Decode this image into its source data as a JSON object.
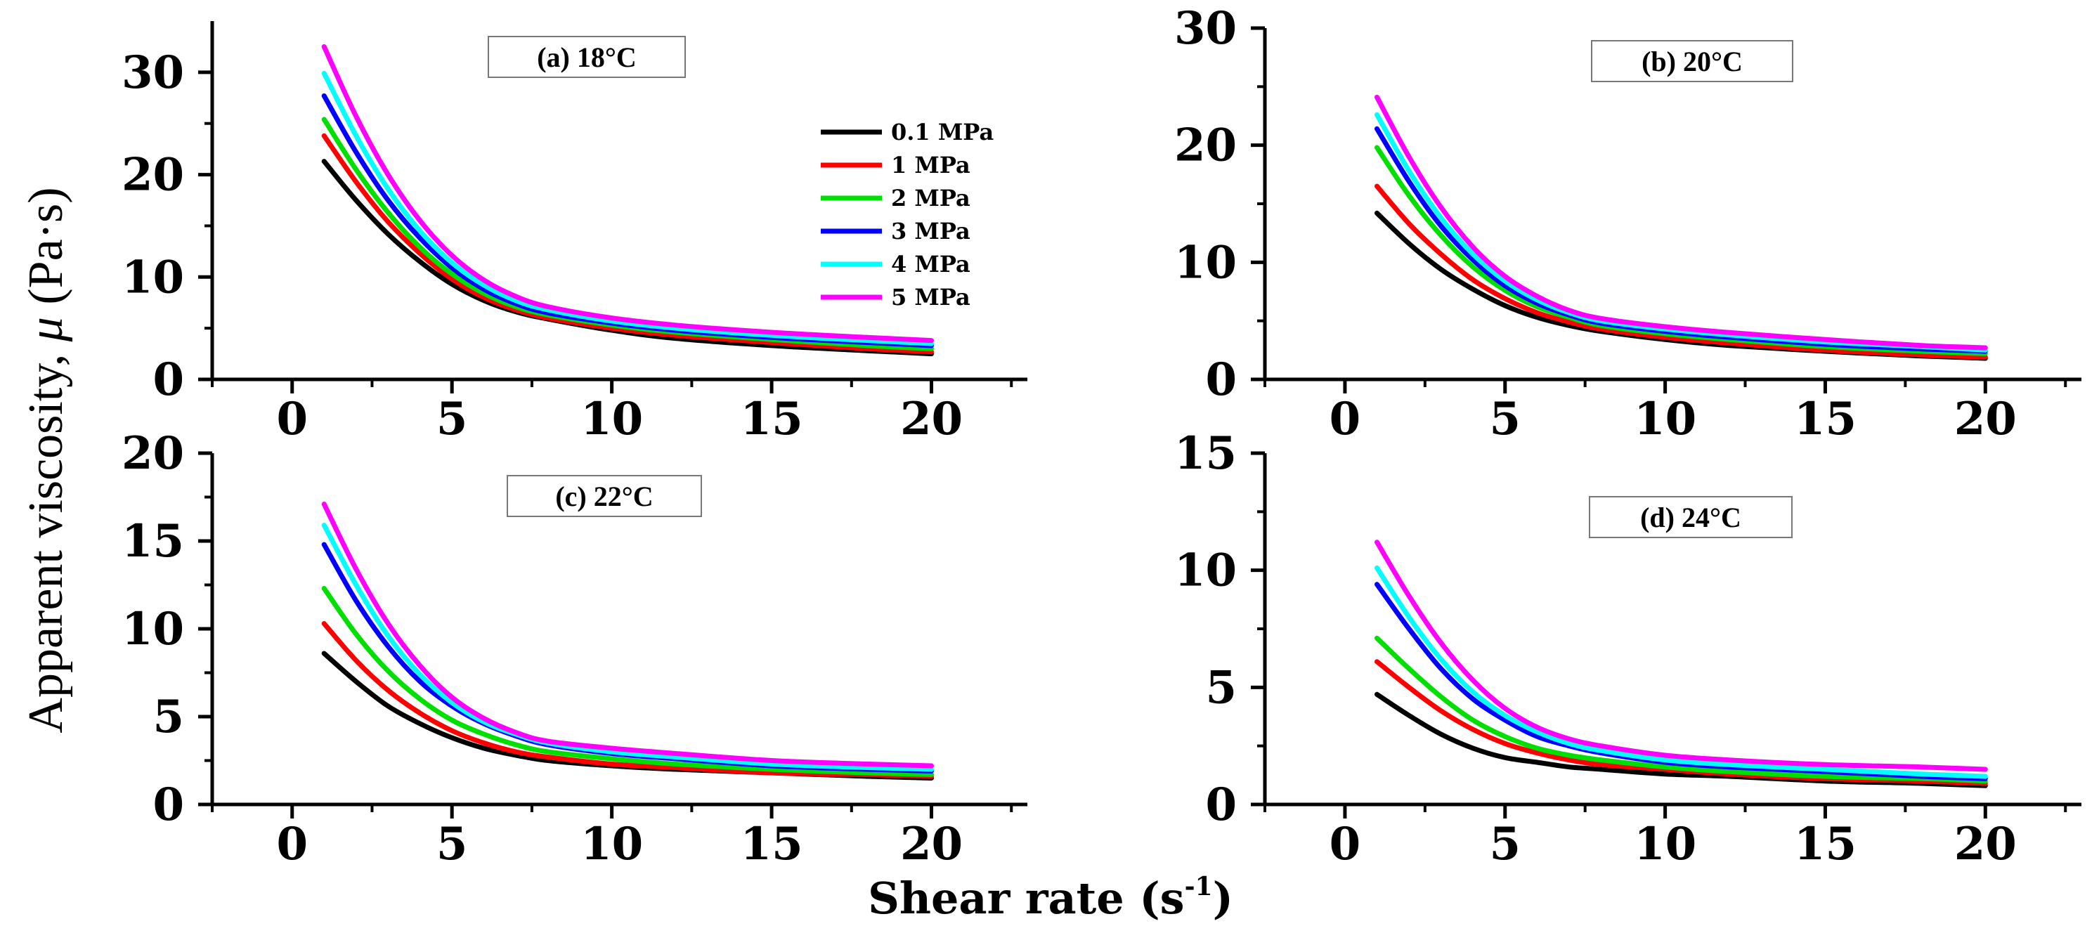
{
  "figure": {
    "xlabel_main": "Shear rate (s",
    "xlabel_sup": "-1",
    "xlabel_close": ")",
    "ylabel_prefix": "Apparent viscosity, ",
    "ylabel_symbol": "μ",
    "ylabel_unit": " (Pa·s)"
  },
  "legend": {
    "items": [
      {
        "label": "0.1 MPa",
        "color": "#000000"
      },
      {
        "label": "1 MPa",
        "color": "#ff0000"
      },
      {
        "label": "2 MPa",
        "color": "#00e000"
      },
      {
        "label": "3 MPa",
        "color": "#0000ff"
      },
      {
        "label": "4 MPa",
        "color": "#00ffff"
      },
      {
        "label": "5 MPa",
        "color": "#ff00ff"
      }
    ]
  },
  "chart_data": [
    {
      "type": "line",
      "title": "(a) 18°C",
      "xlim": [
        -2.5,
        23
      ],
      "ylim": [
        0,
        35
      ],
      "xticks": [
        0,
        5,
        10,
        15,
        20
      ],
      "yticks": [
        0,
        10,
        20,
        30
      ],
      "x": [
        1,
        2,
        3,
        4,
        5,
        6,
        7,
        8,
        10,
        12,
        15,
        18,
        20
      ],
      "series": [
        {
          "name": "0.1 MPa",
          "values": [
            21.3,
            17.5,
            14.2,
            11.5,
            9.3,
            7.7,
            6.6,
            5.9,
            4.8,
            4.0,
            3.3,
            2.8,
            2.5
          ]
        },
        {
          "name": "1 MPa",
          "values": [
            23.8,
            19.3,
            15.4,
            12.3,
            9.8,
            8.0,
            6.8,
            6.0,
            5.0,
            4.3,
            3.6,
            3.0,
            2.7
          ]
        },
        {
          "name": "2 MPa",
          "values": [
            25.4,
            20.5,
            16.3,
            12.9,
            10.3,
            8.4,
            7.1,
            6.3,
            5.3,
            4.6,
            3.9,
            3.3,
            3.0
          ]
        },
        {
          "name": "3 MPa",
          "values": [
            27.7,
            22.2,
            17.5,
            13.8,
            10.9,
            8.8,
            7.4,
            6.5,
            5.5,
            4.8,
            4.1,
            3.6,
            3.3
          ]
        },
        {
          "name": "4 MPa",
          "values": [
            29.9,
            23.8,
            18.6,
            14.5,
            11.4,
            9.2,
            7.7,
            6.8,
            5.7,
            5.0,
            4.3,
            3.8,
            3.5
          ]
        },
        {
          "name": "5 MPa",
          "values": [
            32.5,
            25.7,
            20.0,
            15.5,
            12.1,
            9.7,
            8.1,
            7.1,
            6.0,
            5.3,
            4.6,
            4.1,
            3.8
          ]
        }
      ]
    },
    {
      "type": "line",
      "title": "(b) 20°C",
      "xlim": [
        -2.5,
        23
      ],
      "ylim": [
        0,
        30
      ],
      "xticks": [
        0,
        5,
        10,
        15,
        20
      ],
      "yticks": [
        0,
        10,
        20,
        30
      ],
      "x": [
        1,
        2,
        3,
        4,
        5,
        6,
        7,
        8,
        10,
        12,
        15,
        18,
        20
      ],
      "series": [
        {
          "name": "0.1 MPa",
          "values": [
            14.2,
            11.6,
            9.4,
            7.7,
            6.3,
            5.3,
            4.6,
            4.1,
            3.4,
            2.9,
            2.4,
            2.0,
            1.8
          ]
        },
        {
          "name": "1 MPa",
          "values": [
            16.5,
            13.3,
            10.7,
            8.5,
            6.9,
            5.7,
            4.9,
            4.3,
            3.6,
            3.1,
            2.5,
            2.1,
            1.9
          ]
        },
        {
          "name": "2 MPa",
          "values": [
            19.8,
            15.7,
            12.3,
            9.6,
            7.6,
            6.2,
            5.3,
            4.6,
            3.9,
            3.4,
            2.8,
            2.4,
            2.2
          ]
        },
        {
          "name": "3 MPa",
          "values": [
            21.4,
            16.9,
            13.1,
            10.2,
            8.0,
            6.5,
            5.5,
            4.8,
            4.1,
            3.6,
            3.0,
            2.6,
            2.4
          ]
        },
        {
          "name": "4 MPa",
          "values": [
            22.6,
            17.8,
            13.8,
            10.7,
            8.4,
            6.8,
            5.7,
            5.0,
            4.3,
            3.8,
            3.2,
            2.8,
            2.5
          ]
        },
        {
          "name": "5 MPa",
          "values": [
            24.1,
            19.0,
            14.7,
            11.3,
            8.8,
            7.1,
            5.9,
            5.2,
            4.5,
            4.0,
            3.4,
            2.9,
            2.7
          ]
        }
      ]
    },
    {
      "type": "line",
      "title": "(c) 22°C",
      "xlim": [
        -2.5,
        23
      ],
      "ylim": [
        0,
        20
      ],
      "xticks": [
        0,
        5,
        10,
        15,
        20
      ],
      "yticks": [
        0,
        5,
        10,
        15,
        20
      ],
      "x": [
        1,
        2,
        3,
        4,
        5,
        6,
        7,
        8,
        10,
        12,
        15,
        18,
        20
      ],
      "series": [
        {
          "name": "0.1 MPa",
          "values": [
            8.6,
            7.0,
            5.6,
            4.6,
            3.8,
            3.2,
            2.8,
            2.5,
            2.2,
            2.0,
            1.8,
            1.6,
            1.5
          ]
        },
        {
          "name": "1 MPa",
          "values": [
            10.3,
            8.2,
            6.5,
            5.2,
            4.2,
            3.5,
            3.0,
            2.7,
            2.3,
            2.1,
            1.8,
            1.7,
            1.6
          ]
        },
        {
          "name": "2 MPa",
          "values": [
            12.3,
            9.7,
            7.6,
            6.0,
            4.8,
            4.0,
            3.4,
            3.0,
            2.6,
            2.3,
            2.0,
            1.8,
            1.7
          ]
        },
        {
          "name": "3 MPa",
          "values": [
            14.8,
            11.6,
            9.0,
            7.0,
            5.6,
            4.6,
            3.9,
            3.4,
            2.9,
            2.6,
            2.2,
            2.0,
            1.9
          ]
        },
        {
          "name": "4 MPa",
          "values": [
            15.9,
            12.5,
            9.6,
            7.4,
            5.8,
            4.7,
            4.0,
            3.5,
            3.0,
            2.7,
            2.3,
            2.1,
            2.0
          ]
        },
        {
          "name": "5 MPa",
          "values": [
            17.1,
            13.4,
            10.3,
            7.9,
            6.1,
            4.9,
            4.1,
            3.6,
            3.2,
            2.9,
            2.5,
            2.3,
            2.2
          ]
        }
      ]
    },
    {
      "type": "line",
      "title": "(d) 24°C",
      "xlim": [
        -2.5,
        23
      ],
      "ylim": [
        0,
        15
      ],
      "xticks": [
        0,
        5,
        10,
        15,
        20
      ],
      "yticks": [
        0,
        5,
        10,
        15
      ],
      "x": [
        1,
        2,
        3,
        4,
        5,
        6,
        7,
        8,
        10,
        12,
        15,
        18,
        20
      ],
      "series": [
        {
          "name": "0.1 MPa",
          "values": [
            4.7,
            3.8,
            3.0,
            2.4,
            2.0,
            1.8,
            1.6,
            1.5,
            1.3,
            1.2,
            1.0,
            0.9,
            0.8
          ]
        },
        {
          "name": "1 MPa",
          "values": [
            6.1,
            5.0,
            4.0,
            3.2,
            2.6,
            2.2,
            1.9,
            1.7,
            1.5,
            1.3,
            1.1,
            1.0,
            0.9
          ]
        },
        {
          "name": "2 MPa",
          "values": [
            7.1,
            5.8,
            4.6,
            3.6,
            2.9,
            2.4,
            2.1,
            1.9,
            1.6,
            1.4,
            1.2,
            1.1,
            1.0
          ]
        },
        {
          "name": "3 MPa",
          "values": [
            9.4,
            7.5,
            5.8,
            4.5,
            3.6,
            2.9,
            2.5,
            2.2,
            1.8,
            1.6,
            1.4,
            1.2,
            1.1
          ]
        },
        {
          "name": "4 MPa",
          "values": [
            10.1,
            8.0,
            6.2,
            4.8,
            3.8,
            3.1,
            2.6,
            2.3,
            1.9,
            1.7,
            1.5,
            1.3,
            1.2
          ]
        },
        {
          "name": "5 MPa",
          "values": [
            11.2,
            8.9,
            6.9,
            5.3,
            4.1,
            3.3,
            2.8,
            2.5,
            2.1,
            1.9,
            1.7,
            1.6,
            1.5
          ]
        }
      ]
    }
  ]
}
